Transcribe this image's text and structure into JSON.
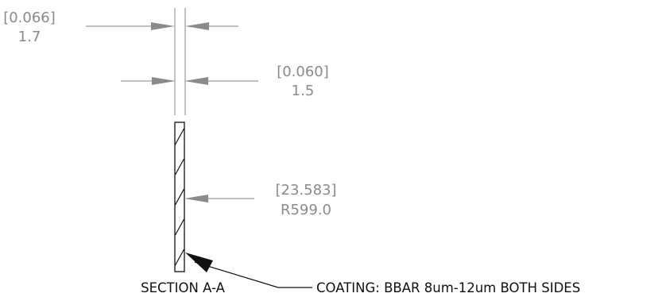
{
  "drawing": {
    "dimensions": [
      {
        "id": "overall-thickness",
        "inch": "[0.066]",
        "metric": "1.7"
      },
      {
        "id": "edge-thickness",
        "inch": "[0.060]",
        "metric": "1.5"
      },
      {
        "id": "surface-radius",
        "inch": "[23.583]",
        "metric": "R599.0"
      }
    ],
    "section_label": "SECTION A-A",
    "coating_note": "COATING: BBAR 8um-12um BOTH SIDES",
    "colors": {
      "dimension": "#8a8a8a",
      "outline": "#111111",
      "background": "#ffffff"
    }
  }
}
